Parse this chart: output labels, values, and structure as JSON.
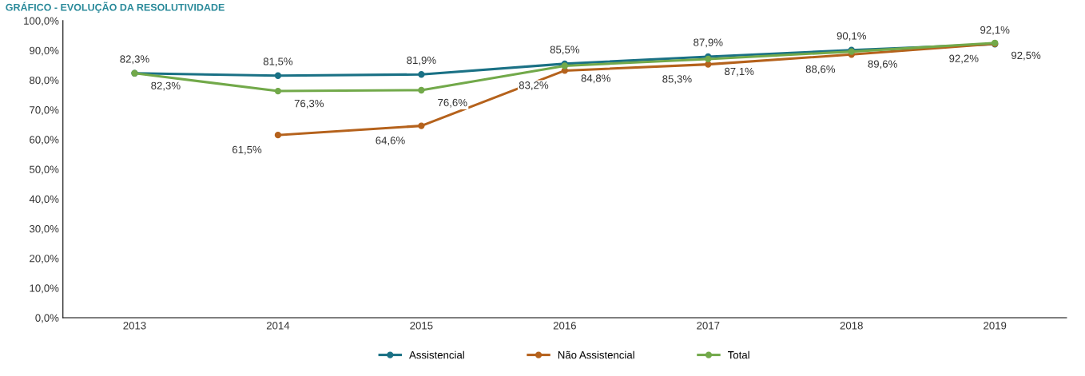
{
  "chart_data": {
    "type": "line",
    "title": "GRÁFICO - EVOLUÇÃO DA RESOLUTIVIDADE",
    "categories": [
      "2013",
      "2014",
      "2015",
      "2016",
      "2017",
      "2018",
      "2019"
    ],
    "series": [
      {
        "name": "Assistencial",
        "color": "#1a7185",
        "values": [
          82.3,
          81.5,
          81.9,
          85.5,
          87.9,
          90.1,
          92.1
        ],
        "value_labels": [
          "82,3%",
          "81,5%",
          "81,9%",
          "85,5%",
          "87,9%",
          "90,1%",
          "92,1%"
        ]
      },
      {
        "name": "Não Assistencial",
        "color": "#b5621c",
        "values": [
          null,
          61.5,
          64.6,
          83.2,
          85.3,
          88.6,
          92.2
        ],
        "value_labels": [
          null,
          "61,5%",
          "64,6%",
          "83,2%",
          "85,3%",
          "88,6%",
          "92,2%"
        ]
      },
      {
        "name": "Total",
        "color": "#72a94a",
        "values": [
          82.3,
          76.3,
          76.6,
          84.8,
          87.1,
          89.6,
          92.5
        ],
        "value_labels": [
          "82,3%",
          "76,3%",
          "76,6%",
          "84,8%",
          "87,1%",
          "89,6%",
          "92,5%"
        ]
      }
    ],
    "ylim": [
      0,
      100
    ],
    "yticks": [
      {
        "value": 0,
        "label": "0,0%"
      },
      {
        "value": 10,
        "label": "10,0%"
      },
      {
        "value": 20,
        "label": "20,0%"
      },
      {
        "value": 30,
        "label": "30,0%"
      },
      {
        "value": 40,
        "label": "40,0%"
      },
      {
        "value": 50,
        "label": "50,0%"
      },
      {
        "value": 60,
        "label": "60,0%"
      },
      {
        "value": 70,
        "label": "70,0%"
      },
      {
        "value": 80,
        "label": "80,0%"
      },
      {
        "value": 90,
        "label": "90,0%"
      },
      {
        "value": 100,
        "label": "100,0%"
      }
    ],
    "grid": false,
    "legend": "bottom",
    "marker": "circle",
    "line_style": "solid"
  }
}
